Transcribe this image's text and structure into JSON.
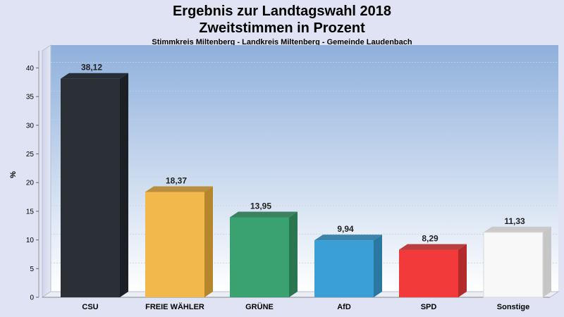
{
  "header": {
    "title_line1": "Ergebnis zur Landtagswahl 2018",
    "title_line2": "Zweitstimmen in Prozent",
    "subtitle": "Stimmkreis Miltenberg - Landkreis Miltenberg - Gemeinde Laudenbach"
  },
  "chart_data": {
    "type": "bar",
    "title": "Ergebnis zur Landtagswahl 2018 Zweitstimmen in Prozent",
    "subtitle": "Stimmkreis Miltenberg - Landkreis Miltenberg - Gemeinde Laudenbach",
    "xlabel": "",
    "ylabel": "%",
    "ylim": [
      0,
      43
    ],
    "yticks": [
      0,
      5,
      10,
      15,
      20,
      25,
      30,
      35,
      40
    ],
    "grid": true,
    "categories": [
      "CSU",
      "FREIE WÄHLER",
      "GRÜNE",
      "AfD",
      "SPD",
      "Sonstige"
    ],
    "values": [
      38.12,
      18.37,
      13.95,
      9.94,
      8.29,
      11.33
    ],
    "value_labels": [
      "38,12",
      "18,37",
      "13,95",
      "9,94",
      "8,29",
      "11,33"
    ],
    "colors": [
      "#2b2f36",
      "#f2b84b",
      "#3aa271",
      "#3a9fd6",
      "#f23a3a",
      "#f8f8f8"
    ],
    "side_colors": [
      "#1c1f24",
      "#b5862c",
      "#2a7651",
      "#2a77a1",
      "#b32a2a",
      "#c6c6c6"
    ]
  }
}
